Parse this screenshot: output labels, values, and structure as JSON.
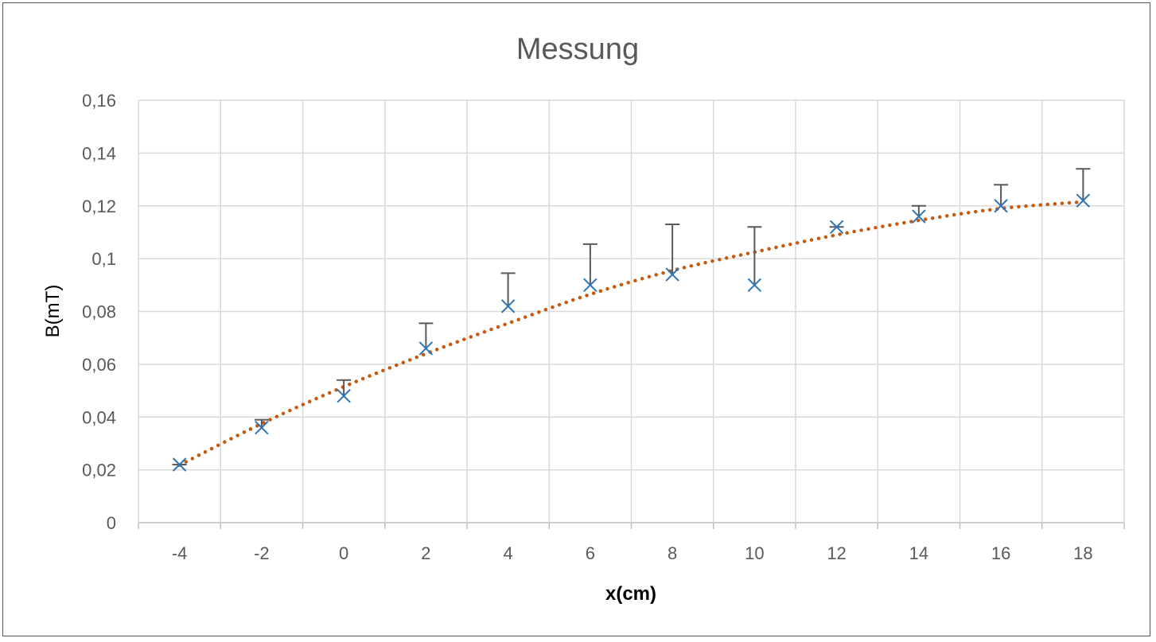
{
  "chart_data": {
    "type": "scatter",
    "title": "Messung",
    "xlabel": "x(cm)",
    "ylabel": "B(mT)",
    "xlim": [
      -5,
      19
    ],
    "ylim": [
      0,
      0.16
    ],
    "x_ticks": [
      "-4",
      "-2",
      "0",
      "2",
      "4",
      "6",
      "8",
      "10",
      "12",
      "14",
      "16",
      "18"
    ],
    "x_tick_values": [
      -4,
      -2,
      0,
      2,
      4,
      6,
      8,
      10,
      12,
      14,
      16,
      18
    ],
    "y_ticks": [
      "0",
      "0,02",
      "0,04",
      "0,06",
      "0,08",
      "0,1",
      "0,12",
      "0,14",
      "0,16"
    ],
    "y_tick_values": [
      0,
      0.02,
      0.04,
      0.06,
      0.08,
      0.1,
      0.12,
      0.14,
      0.16
    ],
    "grid": true,
    "series": [
      {
        "marker": "x",
        "color": "#2E75B6",
        "x": [
          -4,
          -2,
          0,
          2,
          4,
          6,
          8,
          10,
          12,
          14,
          16,
          18
        ],
        "y": [
          0.022,
          0.036,
          0.048,
          0.066,
          0.082,
          0.09,
          0.094,
          0.09,
          0.112,
          0.116,
          0.12,
          0.122
        ],
        "error_upper": [
          0.022,
          0.039,
          0.054,
          0.0755,
          0.0945,
          0.1055,
          0.113,
          0.112,
          0.112,
          0.12,
          0.128,
          0.134
        ]
      }
    ],
    "trendline": {
      "style": "dotted",
      "color": "#C55A11",
      "x": [
        -4,
        -2,
        0,
        2,
        4,
        6,
        8,
        10,
        12,
        14,
        16,
        18
      ],
      "y": [
        0.0218,
        0.0375,
        0.0515,
        0.064,
        0.0755,
        0.0865,
        0.0955,
        0.1025,
        0.109,
        0.1145,
        0.119,
        0.1215
      ]
    },
    "colors": {
      "grid": "#D9D9D9",
      "error_bar": "#595959",
      "axis": "#BFBFBF"
    }
  }
}
